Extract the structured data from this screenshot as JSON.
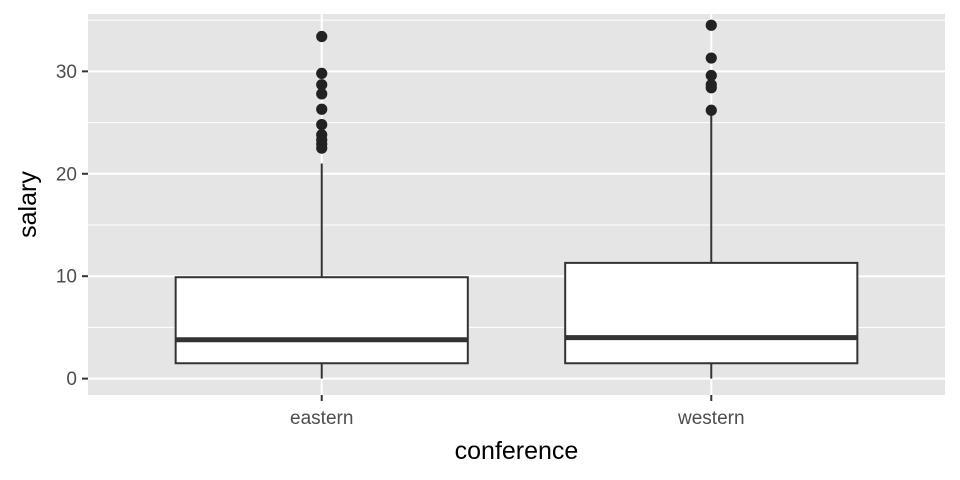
{
  "chart_data": {
    "type": "boxplot",
    "xlabel": "conference",
    "ylabel": "salary",
    "ylim": [
      -1.6,
      35.6
    ],
    "y_ticks": [
      0,
      10,
      20,
      30
    ],
    "grid": true,
    "legend": "none",
    "colors": {
      "panel": "#e5e5e5",
      "grid_major": "#ffffff",
      "box_fill": "#ffffff",
      "stroke": "#333333",
      "outlier": "#222222"
    },
    "categories": [
      "eastern",
      "western"
    ],
    "boxes": [
      {
        "category": "eastern",
        "lower_whisker": 0,
        "q1": 1.5,
        "median": 3.8,
        "q3": 9.9,
        "upper_whisker": 21.0,
        "outliers": [
          22.5,
          22.9,
          23.3,
          23.8,
          24.8,
          26.3,
          27.8,
          28.7,
          29.8,
          33.4
        ]
      },
      {
        "category": "western",
        "lower_whisker": 0,
        "q1": 1.5,
        "median": 4.0,
        "q3": 11.3,
        "upper_whisker": 25.8,
        "outliers": [
          26.2,
          28.4,
          28.7,
          29.6,
          31.3,
          34.5
        ]
      }
    ]
  }
}
